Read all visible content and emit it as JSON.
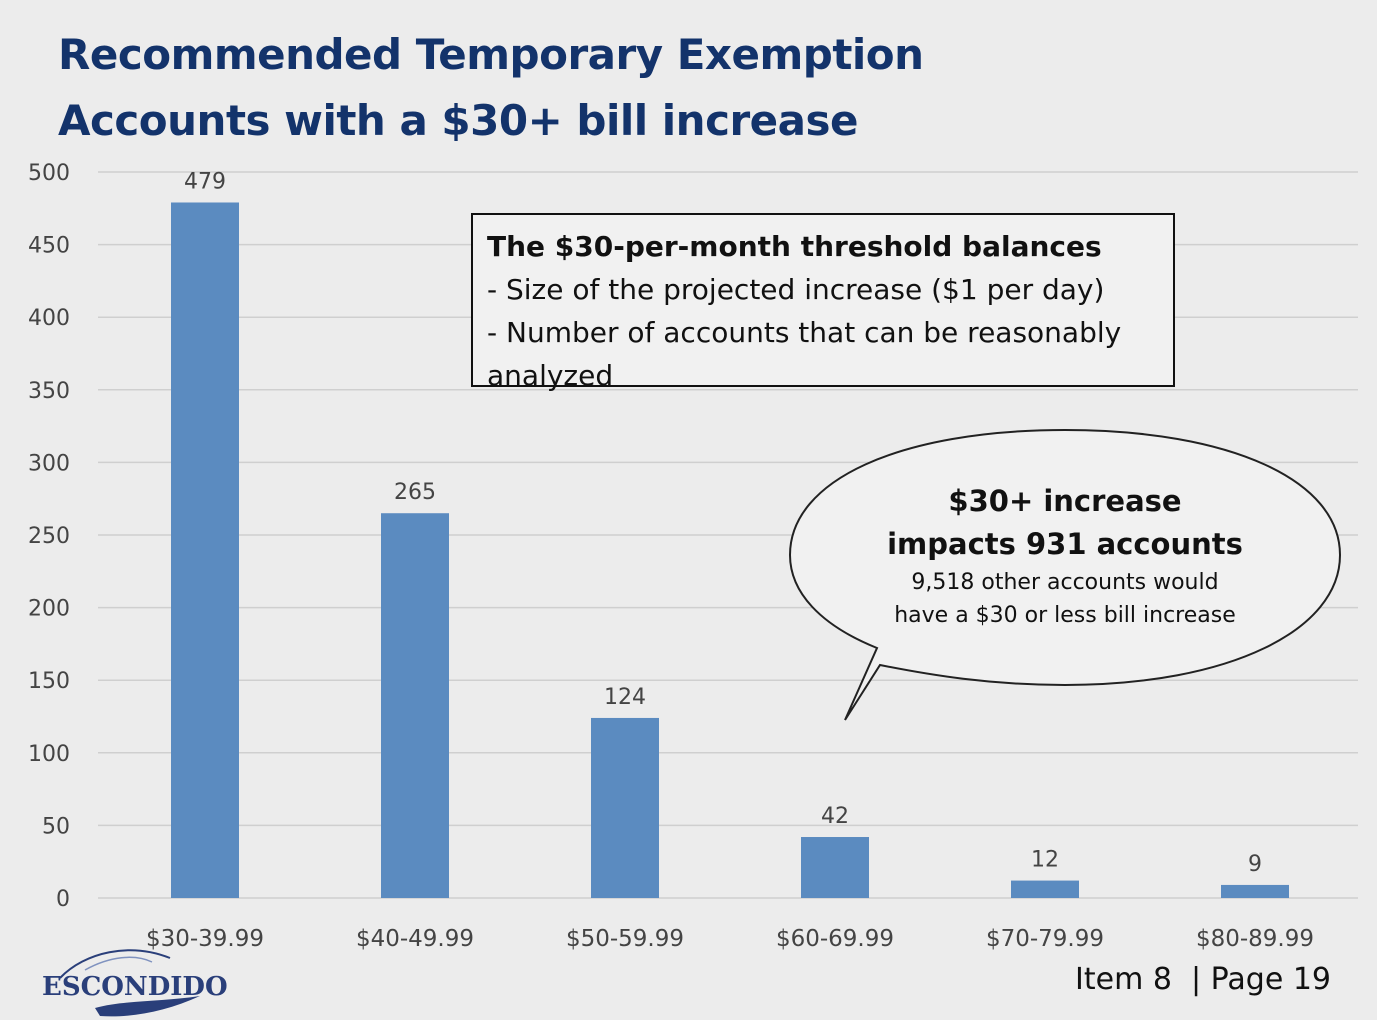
{
  "title": {
    "line1": "Recommended Temporary Exemption",
    "line2": "Accounts with a $30+ bill increase"
  },
  "colors": {
    "title": "#13336b",
    "bar": "#5b8bc0",
    "grid": "#cfcfcf"
  },
  "chart_data": {
    "type": "bar",
    "categories": [
      "$30-39.99",
      "$40-49.99",
      "$50-59.99",
      "$60-69.99",
      "$70-79.99",
      "$80-89.99"
    ],
    "values": [
      479,
      265,
      124,
      42,
      12,
      9
    ],
    "data_labels": [
      "479",
      "265",
      "124",
      "42",
      "12",
      "9"
    ],
    "ylim": [
      0,
      500
    ],
    "yticks": [
      "0",
      "50",
      "100",
      "150",
      "200",
      "250",
      "300",
      "350",
      "400",
      "450",
      "500"
    ],
    "grid": true,
    "legend": "none"
  },
  "callout_box": {
    "heading": "The $30-per-month threshold balances",
    "line1": "- Size of the projected increase ($1 per day)",
    "line2": "- Number of accounts that can be reasonably",
    "line3": "analyzed"
  },
  "speech_bubble": {
    "line1": "$30+ increase",
    "line2": "impacts 931 accounts",
    "line3": "9,518 other accounts would",
    "line4": "have a $30 or less bill increase"
  },
  "logo": {
    "text": "ESCONDIDO",
    "icon": "escondido-logo-icon"
  },
  "footer": {
    "item": "Item 8",
    "separator": "|",
    "page": "Page 19"
  }
}
